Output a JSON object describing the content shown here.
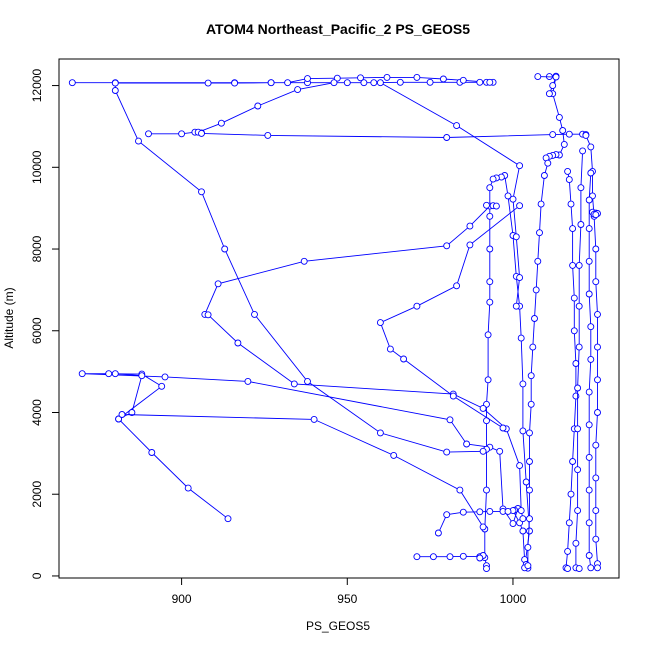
{
  "chart_data": {
    "type": "scatter",
    "title": "ATOM4 Northeast_Pacific_2 PS_GEOS5",
    "xlabel": "PS_GEOS5",
    "ylabel": "Altitude (m)",
    "xlim": [
      863,
      1032
    ],
    "ylim": [
      -50,
      12650
    ],
    "x_ticks": [
      900,
      950,
      1000
    ],
    "y_ticks": [
      0,
      2000,
      4000,
      6000,
      8000,
      10000,
      12000
    ],
    "color": "#0000ff",
    "marker": "open-circle",
    "line": true,
    "grid": false,
    "series": [
      {
        "values": [
          [
            914.0,
            1400
          ],
          [
            902.0,
            2150
          ],
          [
            891.0,
            3020
          ],
          [
            881.0,
            3840
          ],
          [
            894.0,
            4640
          ],
          [
            888.0,
            4940
          ],
          [
            878.0,
            4950
          ],
          [
            870.0,
            4950
          ],
          [
            895.0,
            4870
          ],
          [
            920.0,
            4760
          ],
          [
            981.0,
            3820
          ],
          [
            986.0,
            3230
          ],
          [
            993.0,
            3150
          ],
          [
            996.0,
            3050
          ],
          [
            997.0,
            1640
          ],
          [
            1000.0,
            1280
          ],
          [
            1001.5,
            1650
          ],
          [
            1000.5,
            1610
          ],
          [
            1000.0,
            1600
          ],
          [
            1002.0,
            1300
          ],
          [
            1003.0,
            1100
          ],
          [
            1003.5,
            400
          ],
          [
            1004.0,
            280
          ],
          [
            1004.5,
            190
          ],
          [
            1003.5,
            200
          ],
          [
            1005.0,
            1100
          ],
          [
            1004.0,
            2300
          ],
          [
            1003.0,
            3550
          ],
          [
            1003.0,
            4700
          ],
          [
            1002.5,
            5820
          ],
          [
            1002.0,
            6600
          ],
          [
            1001.0,
            7330
          ],
          [
            1000.0,
            8330
          ],
          [
            998.5,
            9300
          ],
          [
            997.5,
            9800
          ],
          [
            996.5,
            9760
          ],
          [
            995.0,
            9740
          ],
          [
            994.0,
            9710
          ],
          [
            993.0,
            9500
          ],
          [
            993.0,
            8800
          ],
          [
            993.0,
            8000
          ],
          [
            993.0,
            7200
          ],
          [
            993.0,
            6700
          ],
          [
            992.5,
            5900
          ],
          [
            992.5,
            4800
          ],
          [
            992.0,
            4200
          ],
          [
            992.0,
            3800
          ],
          [
            992.0,
            3100
          ],
          [
            992.0,
            2100
          ],
          [
            991.5,
            1150
          ],
          [
            991.5,
            450
          ],
          [
            992.0,
            250
          ],
          [
            992.0,
            180
          ]
        ]
      },
      {
        "values": [
          [
            971.0,
            470
          ],
          [
            976.0,
            470
          ],
          [
            981.0,
            470
          ],
          [
            985.0,
            480
          ],
          [
            990.0,
            470
          ],
          [
            991.0,
            500
          ],
          [
            990.0,
            440
          ]
        ]
      },
      {
        "values": [
          [
            977.5,
            1050
          ],
          [
            980.0,
            1500
          ],
          [
            985.0,
            1560
          ],
          [
            990.0,
            1570
          ],
          [
            993.0,
            1580
          ],
          [
            997.0,
            1580
          ],
          [
            998.5,
            1580
          ]
        ]
      },
      {
        "values": [
          [
            867.0,
            12070
          ],
          [
            880.0,
            12070
          ],
          [
            916.0,
            12070
          ],
          [
            927.0,
            12070
          ],
          [
            938.0,
            12070
          ],
          [
            950.0,
            12070
          ],
          [
            955.0,
            12070
          ],
          [
            958.0,
            12070
          ],
          [
            966.0,
            12080
          ],
          [
            975.0,
            12080
          ],
          [
            984.0,
            12080
          ],
          [
            990.0,
            12080
          ],
          [
            992.0,
            12080
          ],
          [
            994.0,
            12080
          ],
          [
            993.0,
            12080
          ],
          [
            985.0,
            12130
          ],
          [
            979.0,
            12160
          ],
          [
            971.0,
            12200
          ],
          [
            962.0,
            12200
          ],
          [
            954.0,
            12190
          ],
          [
            947.0,
            12180
          ],
          [
            938.0,
            12170
          ],
          [
            932.0,
            12070
          ],
          [
            927.0,
            12070
          ],
          [
            916.0,
            12060
          ],
          [
            908.0,
            12060
          ],
          [
            880.0,
            12060
          ],
          [
            880.0,
            11880
          ],
          [
            887.0,
            10640
          ],
          [
            906.0,
            9400
          ],
          [
            913.0,
            8000
          ],
          [
            922.0,
            6400
          ],
          [
            938.0,
            4760
          ],
          [
            960.0,
            3500
          ],
          [
            980.0,
            3030
          ],
          [
            991.0,
            3050
          ]
        ]
      },
      {
        "values": [
          [
            881.0,
            3840
          ],
          [
            885.0,
            4000
          ],
          [
            888.0,
            4900
          ],
          [
            880.0,
            4950
          ]
        ]
      },
      {
        "values": [
          [
            907.0,
            6400
          ],
          [
            911.0,
            7150
          ],
          [
            937.0,
            7700
          ],
          [
            980.0,
            8080
          ],
          [
            987.0,
            8560
          ],
          [
            993.0,
            9050
          ],
          [
            992.0,
            9070
          ],
          [
            994.0,
            9060
          ],
          [
            995.0,
            9050
          ]
        ]
      },
      {
        "values": [
          [
            908.0,
            6390
          ],
          [
            917.0,
            5700
          ],
          [
            934.0,
            4700
          ],
          [
            982.0,
            4450
          ],
          [
            991.0,
            4100
          ],
          [
            998.0,
            3600
          ],
          [
            1002.0,
            2700
          ],
          [
            1002.5,
            1600
          ],
          [
            1003.0,
            1400
          ]
        ]
      },
      {
        "values": [
          [
            882.0,
            3950
          ],
          [
            940.0,
            3830
          ],
          [
            964.0,
            2950
          ],
          [
            984.0,
            2100
          ],
          [
            991.0,
            1200
          ]
        ]
      },
      {
        "values": [
          [
            890.0,
            10820
          ],
          [
            900.0,
            10820
          ],
          [
            904.0,
            10860
          ],
          [
            906.0,
            10840
          ],
          [
            905.0,
            10860
          ],
          [
            912.0,
            11080
          ],
          [
            923.0,
            11500
          ],
          [
            935.0,
            11900
          ],
          [
            946.0,
            12070
          ]
        ]
      },
      {
        "values": [
          [
            906.0,
            10830
          ],
          [
            926.0,
            10780
          ],
          [
            980.0,
            10730
          ],
          [
            1012.0,
            10800
          ],
          [
            1017.0,
            10810
          ],
          [
            1021.0,
            10810
          ],
          [
            1022.0,
            10800
          ]
        ]
      },
      {
        "values": [
          [
            960.0,
            12070
          ],
          [
            983.0,
            11020
          ],
          [
            1002.0,
            10040
          ],
          [
            1000.0,
            9220
          ],
          [
            1001.0,
            8300
          ],
          [
            1002.0,
            7300
          ],
          [
            1001.0,
            6600
          ]
        ]
      },
      {
        "values": [
          [
            1002.0,
            9060
          ],
          [
            987.0,
            8100
          ],
          [
            983.0,
            7100
          ],
          [
            971.0,
            6600
          ],
          [
            960.0,
            6200
          ],
          [
            963.0,
            5550
          ],
          [
            967.0,
            5310
          ],
          [
            982.0,
            4400
          ],
          [
            997.0,
            3620
          ]
        ]
      },
      {
        "values": [
          [
            1011.0,
            12220
          ],
          [
            1013.0,
            12230
          ],
          [
            1012.0,
            11800
          ],
          [
            1014.0,
            11220
          ],
          [
            1015.0,
            10900
          ],
          [
            1015.5,
            10560
          ],
          [
            1014.0,
            10300
          ],
          [
            1013.0,
            10310
          ],
          [
            1012.0,
            10290
          ],
          [
            1011.0,
            10270
          ],
          [
            1010.0,
            10230
          ],
          [
            1010.5,
            10100
          ],
          [
            1009.5,
            9800
          ],
          [
            1008.5,
            9100
          ],
          [
            1008.0,
            8400
          ],
          [
            1007.5,
            7700
          ],
          [
            1007.0,
            7000
          ],
          [
            1006.5,
            6300
          ],
          [
            1006.0,
            5600
          ],
          [
            1005.5,
            4900
          ],
          [
            1005.5,
            4200
          ],
          [
            1005.0,
            3500
          ],
          [
            1005.0,
            2800
          ],
          [
            1005.0,
            2100
          ],
          [
            1005.0,
            1400
          ],
          [
            1004.5,
            700
          ],
          [
            1004.5,
            250
          ]
        ]
      },
      {
        "values": [
          [
            1007.5,
            12220
          ],
          [
            1013.0,
            12210
          ],
          [
            1012.0,
            12000
          ],
          [
            1011.0,
            11800
          ]
        ]
      },
      {
        "values": [
          [
            1016.5,
            9900
          ],
          [
            1017.0,
            9700
          ],
          [
            1017.5,
            9100
          ],
          [
            1018.0,
            8500
          ],
          [
            1018.0,
            7600
          ],
          [
            1018.5,
            6800
          ],
          [
            1018.5,
            6000
          ],
          [
            1019.0,
            5200
          ],
          [
            1019.0,
            4400
          ],
          [
            1018.5,
            3600
          ],
          [
            1018.0,
            2800
          ],
          [
            1017.5,
            2000
          ],
          [
            1017.0,
            1300
          ],
          [
            1016.5,
            600
          ],
          [
            1016.0,
            200
          ],
          [
            1016.5,
            180
          ]
        ]
      },
      {
        "values": [
          [
            1021.0,
            10400
          ],
          [
            1020.5,
            9500
          ],
          [
            1020.5,
            8600
          ],
          [
            1020.0,
            7600
          ],
          [
            1020.0,
            6600
          ],
          [
            1020.0,
            5600
          ],
          [
            1019.5,
            4600
          ],
          [
            1019.5,
            3600
          ],
          [
            1019.5,
            2600
          ],
          [
            1019.5,
            1600
          ],
          [
            1019.0,
            800
          ],
          [
            1019.0,
            200
          ],
          [
            1020.0,
            180
          ]
        ]
      },
      {
        "values": [
          [
            1022.0,
            10780
          ],
          [
            1023.5,
            10500
          ],
          [
            1024.0,
            9900
          ],
          [
            1024.0,
            9300
          ],
          [
            1024.5,
            8800
          ],
          [
            1025.0,
            8000
          ],
          [
            1025.0,
            7200
          ],
          [
            1025.5,
            6400
          ],
          [
            1025.5,
            5600
          ],
          [
            1025.5,
            4800
          ],
          [
            1025.5,
            4000
          ],
          [
            1025.0,
            3200
          ],
          [
            1025.0,
            2400
          ],
          [
            1025.0,
            1600
          ],
          [
            1025.0,
            900
          ],
          [
            1025.5,
            300
          ],
          [
            1025.5,
            200
          ]
        ]
      },
      {
        "values": [
          [
            1023.5,
            9860
          ],
          [
            1023.0,
            9200
          ],
          [
            1023.0,
            8500
          ],
          [
            1023.0,
            7700
          ],
          [
            1023.0,
            6900
          ],
          [
            1023.5,
            6100
          ],
          [
            1023.5,
            5300
          ],
          [
            1023.0,
            4500
          ],
          [
            1023.0,
            3700
          ],
          [
            1023.0,
            2900
          ],
          [
            1023.0,
            2100
          ],
          [
            1023.0,
            1300
          ],
          [
            1023.0,
            500
          ],
          [
            1023.5,
            200
          ]
        ]
      },
      {
        "values": [
          [
            1024.0,
            8900
          ],
          [
            1025.0,
            8880
          ],
          [
            1025.5,
            8870
          ],
          [
            1024.5,
            8850
          ],
          [
            1025.0,
            8840
          ]
        ]
      }
    ]
  }
}
